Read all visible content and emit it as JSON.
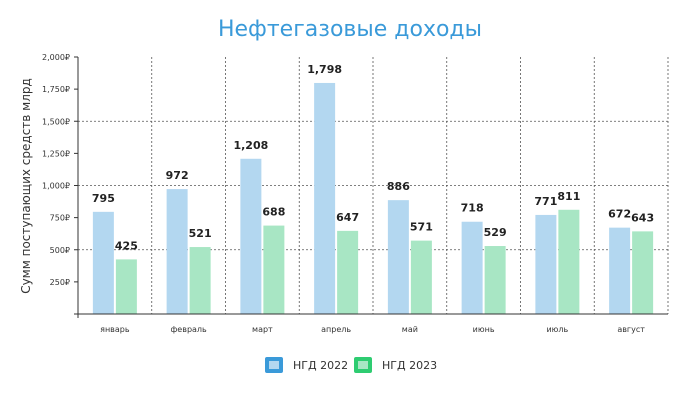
{
  "chart_data": {
    "type": "bar",
    "title": "Нефтегазовые доходы",
    "ylabel": "Сумм поступающих средств млрд",
    "xlabel": "",
    "categories": [
      "январь",
      "февраль",
      "март",
      "апрель",
      "май",
      "июнь",
      "июль",
      "август"
    ],
    "series": [
      {
        "name": "НГД 2022",
        "values": [
          795,
          972,
          1208,
          1798,
          886,
          718,
          771,
          672
        ],
        "value_labels": [
          "795",
          "972",
          "1,208",
          "1,798",
          "886",
          "718",
          "771",
          "672"
        ],
        "color": "#b3d7f0",
        "legend_color": "#3a9ad9"
      },
      {
        "name": "НГД 2023",
        "values": [
          425,
          521,
          688,
          647,
          571,
          529,
          811,
          643
        ],
        "value_labels": [
          "425",
          "521",
          "688",
          "647",
          "571",
          "529",
          "811",
          "643"
        ],
        "color": "#a8e6c4",
        "legend_color": "#2ecc71"
      }
    ],
    "ylim": [
      0,
      2000
    ],
    "yticks": [
      250,
      500,
      750,
      1000,
      1250,
      1500,
      1750,
      2000
    ],
    "ytick_labels": [
      "250₽",
      "500₽",
      "750₽",
      "1,000₽",
      "1,250₽",
      "1,500₽",
      "1,750₽",
      "2,000₽"
    ],
    "grid": "dotted",
    "legend": "bottom-center"
  }
}
